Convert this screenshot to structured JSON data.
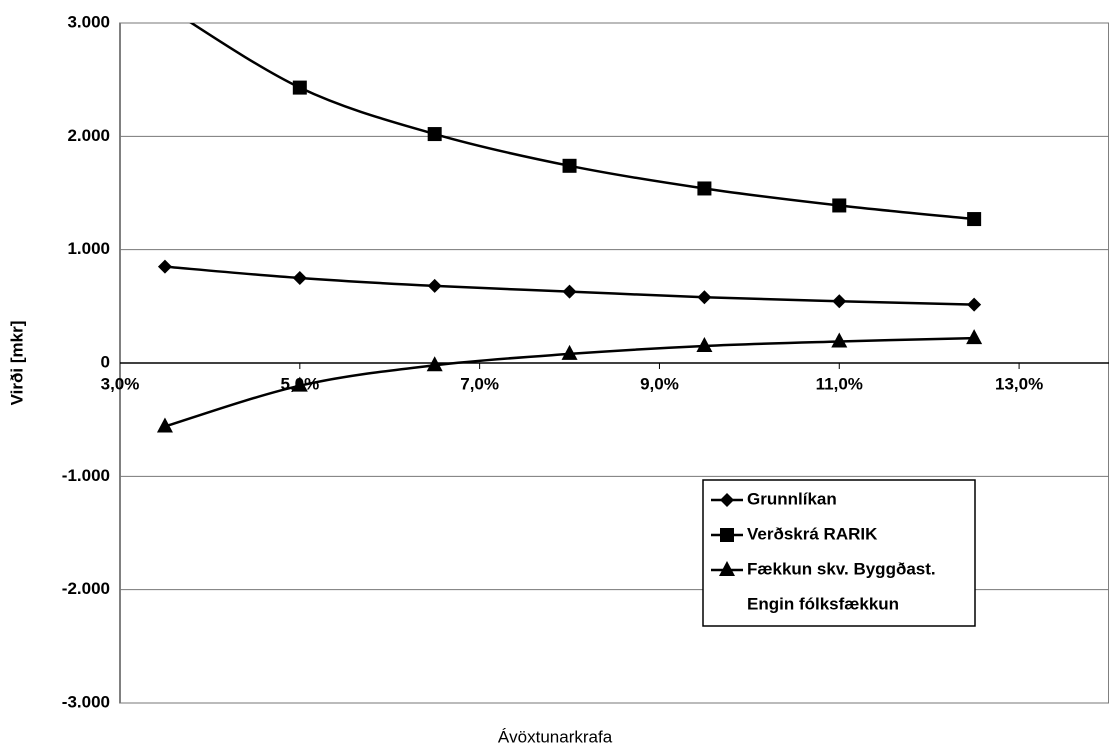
{
  "chart_data": {
    "type": "line",
    "x_label": "Ávöxtunarkrafa",
    "y_label": "Virði [mkr]",
    "x": [
      3.5,
      5,
      6.5,
      8,
      9.5,
      11,
      12.5
    ],
    "series": [
      {
        "name": "Grunnlíkan",
        "color": "#000000",
        "marker": "diamond",
        "values": [
          850,
          750,
          680,
          630,
          580,
          545,
          515
        ]
      },
      {
        "name": "Verðskrá RARIK",
        "color": "#000000",
        "marker": "square",
        "values": [
          3150,
          2430,
          2020,
          1740,
          1540,
          1390,
          1270
        ]
      },
      {
        "name": "Fækkun skv. Byggðast.",
        "color": "#000000",
        "marker": "triangle",
        "values": [
          -560,
          -200,
          -20,
          80,
          150,
          190,
          220
        ]
      },
      {
        "name": "Engin fólksfækkun",
        "color": "#000000",
        "marker": "none",
        "values": [
          null,
          null,
          null,
          null,
          null,
          null,
          null
        ]
      }
    ],
    "xlim": [
      3,
      14
    ],
    "xticks": [
      {
        "value": 3,
        "label": "3,0%"
      },
      {
        "value": 5,
        "label": "5,0%"
      },
      {
        "value": 7,
        "label": "7,0%"
      },
      {
        "value": 9,
        "label": "9,0%"
      },
      {
        "value": 11,
        "label": "11,0%"
      },
      {
        "value": 13,
        "label": "13,0%"
      }
    ],
    "ylim": [
      -3000,
      3000
    ],
    "yticks": [
      {
        "value": 3000,
        "label": "3.000"
      },
      {
        "value": 2000,
        "label": "2.000"
      },
      {
        "value": 1000,
        "label": "1.000"
      },
      0,
      {
        "value": -1000,
        "label": "-1.000"
      },
      {
        "value": -2000,
        "label": "-2.000"
      },
      {
        "value": -3000,
        "label": "-3.000"
      }
    ],
    "grid": true,
    "legend": "lower right"
  }
}
